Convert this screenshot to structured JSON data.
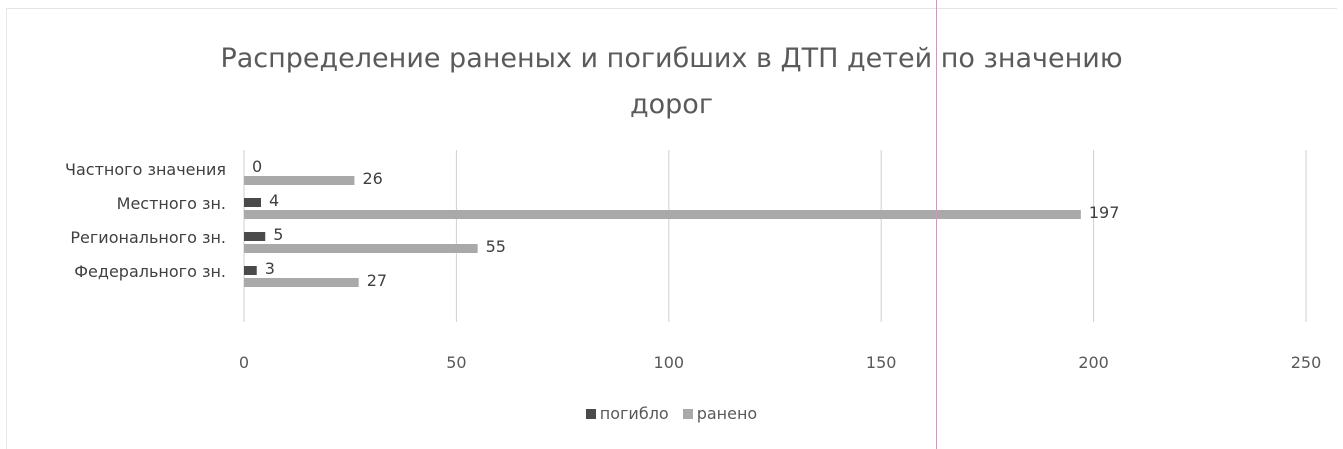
{
  "chart_data": {
    "type": "bar",
    "orientation": "horizontal",
    "title": "Распределение раненых и погибших в ДТП детей по значению дорог",
    "title_lines": [
      "Распределение раненых и погибших в ДТП детей по значению",
      "дорог"
    ],
    "categories": [
      "Частного значения",
      "Местного зн.",
      "Регионального зн.",
      "Федерального зн."
    ],
    "series": [
      {
        "name": "погибло",
        "values": [
          0,
          4,
          5,
          3
        ],
        "color": "#4a4a4a"
      },
      {
        "name": "ранено",
        "values": [
          26,
          197,
          55,
          27
        ],
        "color": "#a9a9a9"
      }
    ],
    "xlim": [
      0,
      250
    ],
    "xticks": [
      0,
      50,
      100,
      150,
      200,
      250
    ],
    "grid": true,
    "legend_position": "bottom"
  }
}
